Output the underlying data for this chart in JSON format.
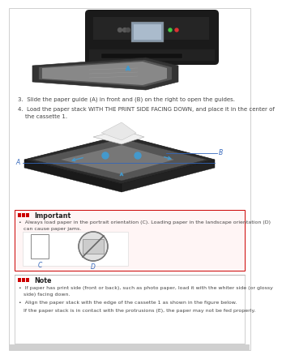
{
  "page_bg": "#ffffff",
  "border_color": "#c8c8c8",
  "step3_text": "3.  Slide the paper guide (A) in front and (B) on the right to open the guides.",
  "step4_line1": "4.  Load the paper stack WITH THE PRINT SIDE FACING DOWN, and place it in the center of",
  "step4_line2": "    the cassette 1.",
  "important_label": "Important",
  "important_bg": "#fff5f5",
  "important_border": "#cc0000",
  "important_icon_color": "#cc0000",
  "important_text_line1": "•  Always load paper in the portrait orientation (C). Loading paper in the landscape orientation (D)",
  "important_text_line2": "   can cause paper jams.",
  "label_c": "C",
  "label_d": "D",
  "note_label": "Note",
  "note_icon_color": "#cc0000",
  "note_text1a": "•  If paper has print side (front or back), such as photo paper, load it with the whiter side (or glossy",
  "note_text1b": "   side) facing down.",
  "note_text2": "•  Align the paper stack with the edge of the cassette 1 as shown in the figure below.",
  "note_text3": "   If the paper stack is in contact with the protrusions (E), the paper may not be fed properly.",
  "text_color": "#444444",
  "label_a": "A",
  "label_b": "B",
  "label_color": "#3366bb",
  "arrow_color": "#4499cc",
  "printer_body": "#1a1a1a",
  "printer_mid": "#2a2a2a",
  "tray_dark": "#333333",
  "tray_mid": "#555555",
  "tray_light": "#888888",
  "cassette_dark": "#2a2a2a",
  "cassette_mid": "#555555",
  "cassette_light": "#888888"
}
